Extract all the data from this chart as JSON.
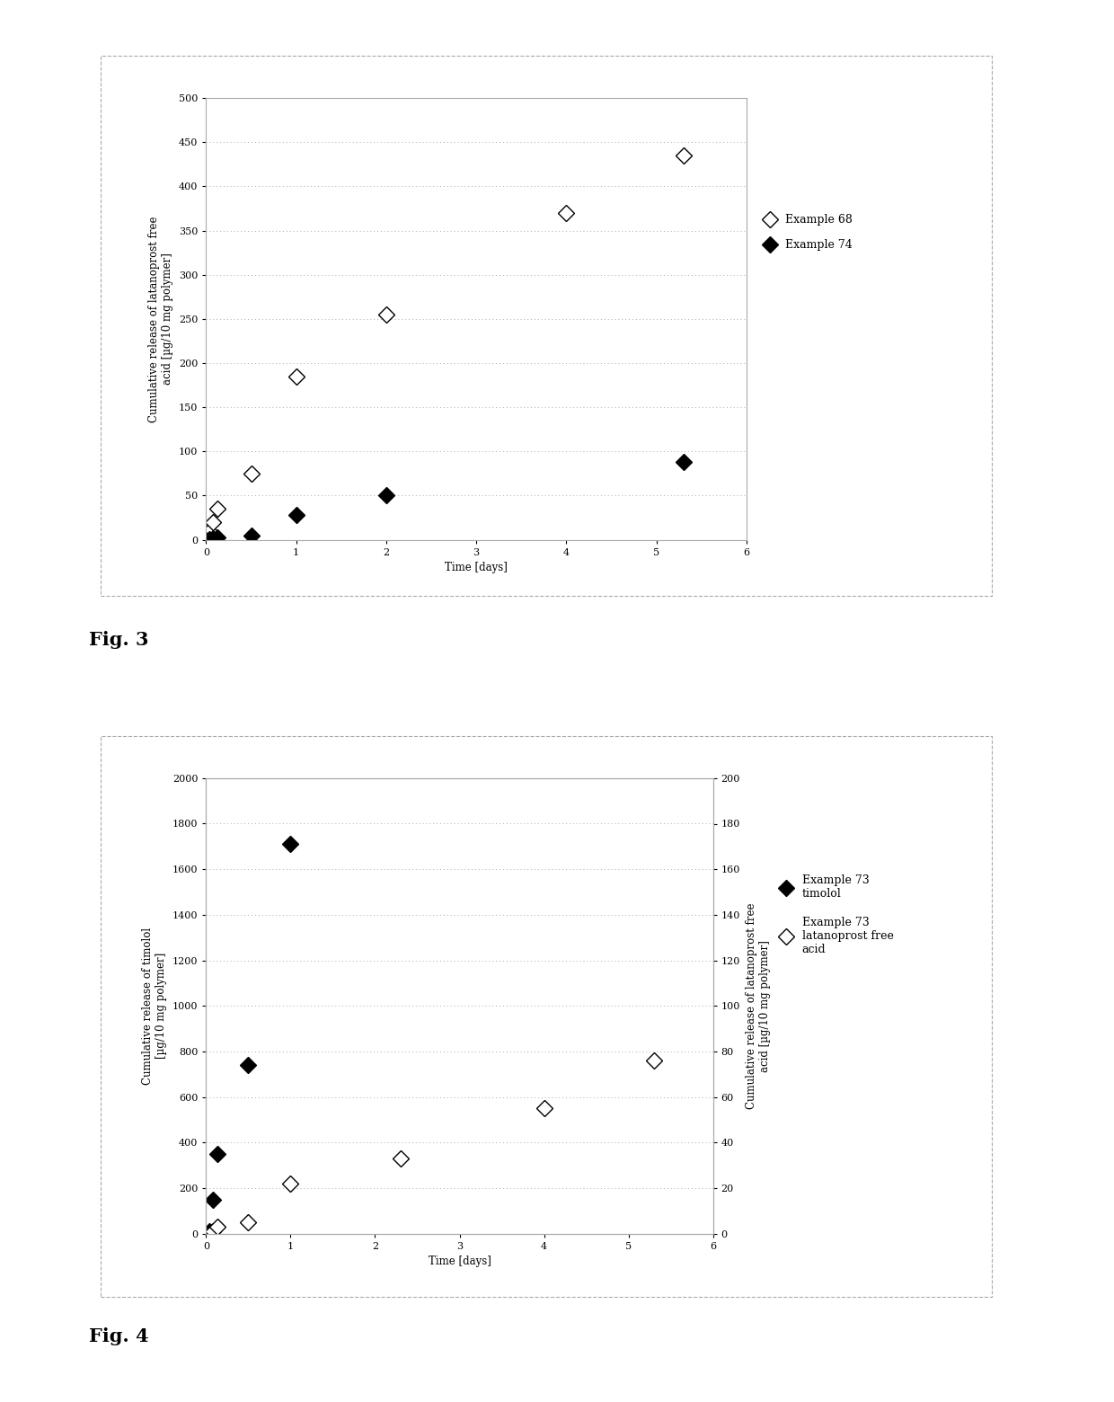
{
  "fig3": {
    "ex68_x": [
      0.0,
      0.04,
      0.08,
      0.13,
      0.5,
      1.0,
      2.0,
      4.0,
      5.3
    ],
    "ex68_y": [
      0,
      10,
      20,
      35,
      75,
      185,
      255,
      370,
      435
    ],
    "ex74_x": [
      0.0,
      0.04,
      0.08,
      0.13,
      0.5,
      1.0,
      2.0,
      5.3
    ],
    "ex74_y": [
      0,
      1,
      2,
      3,
      5,
      28,
      50,
      88
    ],
    "ylabel": "Cumulative release of latanoprost free\nacid [µg/10 mg polymer]",
    "xlabel": "Time [days]",
    "ylim": [
      0,
      500
    ],
    "xlim": [
      0,
      6
    ],
    "yticks": [
      0,
      50,
      100,
      150,
      200,
      250,
      300,
      350,
      400,
      450,
      500
    ],
    "xticks": [
      0,
      1,
      2,
      3,
      4,
      5,
      6
    ],
    "legend1": "Example 68",
    "legend2": "Example 74"
  },
  "fig4": {
    "timolol_x": [
      0.0,
      0.04,
      0.08,
      0.13,
      0.5,
      1.0
    ],
    "timolol_y": [
      0,
      10,
      150,
      350,
      740,
      1710
    ],
    "lfa_x": [
      0.0,
      0.04,
      0.08,
      0.13,
      0.5,
      1.0,
      2.3,
      4.0,
      5.3
    ],
    "lfa_y": [
      0,
      0,
      1,
      3,
      5,
      22,
      33,
      55,
      76
    ],
    "ylabel_left": "Cumulative release of timolol\n[µg/10 mg polymer]",
    "ylabel_right": "Cumulative release of latanoprost free\nacid [µg/10 mg polymer]",
    "xlabel": "Time [days]",
    "ylim_left": [
      0,
      2000
    ],
    "ylim_right": [
      0,
      200
    ],
    "xlim": [
      0,
      6
    ],
    "yticks_left": [
      0,
      200,
      400,
      600,
      800,
      1000,
      1200,
      1400,
      1600,
      1800,
      2000
    ],
    "yticks_right": [
      0,
      20,
      40,
      60,
      80,
      100,
      120,
      140,
      160,
      180,
      200
    ],
    "xticks": [
      0,
      1,
      2,
      3,
      4,
      5,
      6
    ],
    "legend1": "Example 73\ntimolol",
    "legend2": "Example 73\nlatanoprost free\nacid"
  },
  "bg_color": "#ffffff",
  "plot_bg": "#ffffff",
  "box_color": "#aaaaaa",
  "grid_color": "#aaaaaa",
  "marker_size": 9,
  "font_size_label": 8.5,
  "font_size_tick": 8,
  "font_size_legend": 9,
  "font_size_fig_label": 15
}
